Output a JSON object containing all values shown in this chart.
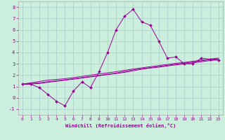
{
  "xlabel": "Windchill (Refroidissement éolien,°C)",
  "bg_color": "#cceedd",
  "grid_color": "#aacccc",
  "line_color": "#990099",
  "xlim": [
    -0.5,
    23.5
  ],
  "ylim": [
    -1.5,
    8.5
  ],
  "xticks": [
    0,
    1,
    2,
    3,
    4,
    5,
    6,
    7,
    8,
    9,
    10,
    11,
    12,
    13,
    14,
    15,
    16,
    17,
    18,
    19,
    20,
    21,
    22,
    23
  ],
  "yticks": [
    -1,
    0,
    1,
    2,
    3,
    4,
    5,
    6,
    7,
    8
  ],
  "x_data": [
    0,
    1,
    2,
    3,
    4,
    5,
    6,
    7,
    8,
    9,
    10,
    11,
    12,
    13,
    14,
    15,
    16,
    17,
    18,
    19,
    20,
    21,
    22,
    23
  ],
  "y_main": [
    1.2,
    1.2,
    0.9,
    0.3,
    -0.3,
    -0.7,
    0.6,
    1.4,
    0.9,
    2.3,
    4.0,
    6.0,
    7.2,
    7.8,
    6.7,
    6.4,
    5.0,
    3.5,
    3.6,
    3.0,
    3.0,
    3.5,
    3.4,
    3.3
  ],
  "y_line1": [
    1.2,
    1.32,
    1.44,
    1.56,
    1.62,
    1.68,
    1.78,
    1.88,
    2.0,
    2.1,
    2.2,
    2.3,
    2.42,
    2.54,
    2.64,
    2.74,
    2.84,
    2.94,
    3.04,
    3.12,
    3.22,
    3.32,
    3.42,
    3.5
  ],
  "y_line2": [
    1.2,
    1.26,
    1.32,
    1.42,
    1.5,
    1.58,
    1.68,
    1.78,
    1.88,
    1.98,
    2.08,
    2.18,
    2.32,
    2.46,
    2.56,
    2.66,
    2.76,
    2.86,
    2.96,
    3.06,
    3.16,
    3.26,
    3.36,
    3.44
  ],
  "y_line3": [
    1.2,
    1.22,
    1.26,
    1.36,
    1.45,
    1.55,
    1.64,
    1.74,
    1.84,
    1.94,
    2.04,
    2.14,
    2.24,
    2.38,
    2.52,
    2.62,
    2.7,
    2.8,
    2.9,
    2.98,
    3.08,
    3.18,
    3.28,
    3.36
  ]
}
